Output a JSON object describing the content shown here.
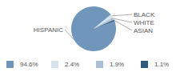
{
  "chart_data": {
    "type": "pie",
    "categories": [
      "HISPANIC",
      "BLACK",
      "WHITE",
      "ASIAN"
    ],
    "values": [
      94.6,
      2.4,
      1.9,
      1.1
    ],
    "value_labels": [
      "94.6%",
      "2.4%",
      "1.9%",
      "1.1%"
    ],
    "colors": [
      "#7097bb",
      "#d6e2ec",
      "#a8bfd4",
      "#2d5a7e"
    ]
  }
}
